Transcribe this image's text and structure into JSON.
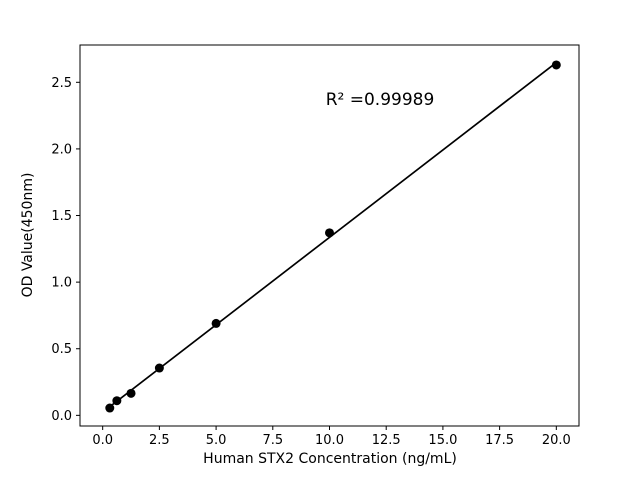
{
  "chart_data": {
    "type": "scatter",
    "title": "",
    "xlabel": "Human STX2 Concentration (ng/mL)",
    "ylabel": "OD Value(450nm)",
    "annotation": {
      "text": "R² =0.99989",
      "x_data": 12.2,
      "y_data": 2.35
    },
    "x": [
      0.313,
      0.625,
      1.25,
      2.5,
      5,
      10,
      20
    ],
    "y": [
      0.055,
      0.11,
      0.165,
      0.355,
      0.69,
      1.37,
      2.63
    ],
    "fit": {
      "type": "linear",
      "r_squared": 0.99989
    },
    "xlim": [
      -1.0,
      21.0
    ],
    "ylim": [
      -0.08,
      2.78
    ],
    "x_ticks": {
      "values": [
        0,
        2.5,
        5,
        7.5,
        10,
        12.5,
        15,
        17.5,
        20
      ],
      "labels": [
        "0.0",
        "2.5",
        "5.0",
        "7.5",
        "10.0",
        "12.5",
        "15.0",
        "17.5",
        "20.0"
      ]
    },
    "y_ticks": {
      "values": [
        0,
        0.5,
        1.0,
        1.5,
        2.0,
        2.5
      ],
      "labels": [
        "0.0",
        "0.5",
        "1.0",
        "1.5",
        "2.0",
        "2.5"
      ]
    },
    "grid": false,
    "legend": "none",
    "marker_color": "#000000",
    "line_color": "#000000",
    "background_color": "#ffffff"
  }
}
